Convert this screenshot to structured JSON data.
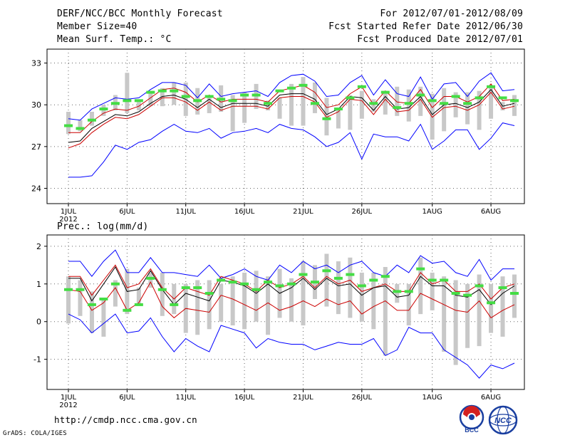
{
  "header": {
    "title": "DERF/NCC/BCC Monthly Forecast",
    "member_size": "Member Size=40",
    "variable": "Mean Surf. Temp.: °C",
    "forecast_range": "For 2012/07/01-2012/08/09",
    "started_refer": "Fcst Started Refer Date 2012/06/30",
    "produced": "Fcst Produced Date 2012/07/01"
  },
  "footer": {
    "url": "http://cmdp.ncc.cma.gov.cn",
    "grads": "GrADS: COLA/IGES",
    "logo_bcc": "BCC",
    "logo_ncc": "NCC"
  },
  "colors": {
    "max_line": "#0000ff",
    "min_line": "#0000ff",
    "ensemble_mean": "#000000",
    "upper_band": "#cc0000",
    "lower_band": "#cc0000",
    "spread_bar": "#c8c8c8",
    "observed_marker": "#44dd44"
  },
  "chart_data": [
    {
      "type": "line",
      "title": "Mean Surf. Temp.: °C",
      "ylim": [
        22.9,
        34
      ],
      "yticks": [
        24,
        27,
        30,
        33
      ],
      "x_start_day": 1,
      "x_tick_labels": [
        "1JUL",
        "6JUL",
        "11JUL",
        "16JUL",
        "21JUL",
        "26JUL",
        "1AUG",
        "6AUG"
      ],
      "x_tick_days": [
        1,
        6,
        11,
        16,
        21,
        26,
        32,
        37
      ],
      "year_label": "2012",
      "days": 39,
      "series": [
        {
          "name": "max",
          "values": [
            29.0,
            28.9,
            29.7,
            30.1,
            30.5,
            30.4,
            30.5,
            31.1,
            31.6,
            31.6,
            31.4,
            30.5,
            31.5,
            30.6,
            30.8,
            30.9,
            31.0,
            30.6,
            31.6,
            32.1,
            32.2,
            31.7,
            30.6,
            30.7,
            31.6,
            32.1,
            30.7,
            31.8,
            30.8,
            30.6,
            32.0,
            30.4,
            31.5,
            31.6,
            30.6,
            31.7,
            32.3,
            31.0,
            31.1
          ]
        },
        {
          "name": "upper",
          "values": [
            28.0,
            28.0,
            28.8,
            29.4,
            29.7,
            29.6,
            29.9,
            30.5,
            31.1,
            31.2,
            30.9,
            30.2,
            30.7,
            30.2,
            30.4,
            30.4,
            30.4,
            30.2,
            31.0,
            31.2,
            31.4,
            30.9,
            29.8,
            30.0,
            30.8,
            31.3,
            30.0,
            31.0,
            30.2,
            30.1,
            31.1,
            29.8,
            30.6,
            30.6,
            30.2,
            30.6,
            31.5,
            30.3,
            30.4
          ]
        },
        {
          "name": "mean",
          "values": [
            27.3,
            27.4,
            28.3,
            28.8,
            29.3,
            29.2,
            29.5,
            30.1,
            30.6,
            30.7,
            30.4,
            29.8,
            30.4,
            29.8,
            30.1,
            30.1,
            30.1,
            29.9,
            30.7,
            30.8,
            30.8,
            30.4,
            29.3,
            29.7,
            30.6,
            30.5,
            29.6,
            30.6,
            29.7,
            29.8,
            30.6,
            29.3,
            30.0,
            30.1,
            29.8,
            30.2,
            31.1,
            29.9,
            30.1
          ]
        },
        {
          "name": "lower",
          "values": [
            26.9,
            27.2,
            28.0,
            28.6,
            29.1,
            29.0,
            29.3,
            29.9,
            30.5,
            30.5,
            30.2,
            29.6,
            30.2,
            29.6,
            29.9,
            29.9,
            29.9,
            29.7,
            30.5,
            30.6,
            30.6,
            30.2,
            29.1,
            29.5,
            30.4,
            30.3,
            29.3,
            30.4,
            29.5,
            29.6,
            30.4,
            29.1,
            29.8,
            29.9,
            29.6,
            30.0,
            30.9,
            29.7,
            29.9
          ]
        },
        {
          "name": "min",
          "values": [
            24.8,
            24.8,
            24.9,
            25.9,
            27.1,
            26.8,
            27.3,
            27.5,
            28.1,
            28.6,
            28.1,
            28.0,
            28.3,
            27.6,
            28.0,
            28.1,
            28.3,
            28.0,
            28.6,
            28.3,
            28.2,
            27.7,
            27.0,
            27.3,
            28.0,
            26.1,
            27.9,
            27.7,
            27.7,
            27.4,
            28.6,
            26.8,
            27.4,
            28.2,
            28.2,
            26.8,
            27.6,
            28.7,
            28.5
          ]
        },
        {
          "name": "spread_high",
          "values": [
            29.5,
            28.9,
            29.5,
            30.0,
            30.7,
            32.3,
            30.2,
            31.0,
            31.2,
            31.6,
            31.6,
            31.2,
            30.7,
            31.4,
            30.7,
            30.9,
            31.5,
            30.3,
            30.5,
            31.5,
            32.0,
            31.6,
            30.5,
            29.6,
            30.7,
            31.0,
            30.4,
            31.0,
            31.3,
            31.1,
            31.3,
            30.8,
            31.2,
            30.9,
            30.9,
            31.0,
            31.3,
            30.2,
            30.7
          ]
        },
        {
          "name": "spread_low",
          "values": [
            27.9,
            28.1,
            28.5,
            29.2,
            29.6,
            29.4,
            29.6,
            29.9,
            29.9,
            30.0,
            29.2,
            29.3,
            29.4,
            29.5,
            28.1,
            28.7,
            29.7,
            29.6,
            29.0,
            28.5,
            28.5,
            29.4,
            27.8,
            28.3,
            28.2,
            29.0,
            29.5,
            29.3,
            29.2,
            28.8,
            29.2,
            27.5,
            28.1,
            29.1,
            28.6,
            28.2,
            29.0,
            29.6,
            29.2
          ]
        },
        {
          "name": "observed",
          "values": [
            28.5,
            28.3,
            28.9,
            29.7,
            30.1,
            30.3,
            30.3,
            30.9,
            31.0,
            31.0,
            30.6,
            30.3,
            30.6,
            30.4,
            30.3,
            30.7,
            30.7,
            30.1,
            31.0,
            31.2,
            31.4,
            30.1,
            29.0,
            29.7,
            30.5,
            31.3,
            30.1,
            30.9,
            29.8,
            30.1,
            30.7,
            30.3,
            30.1,
            30.6,
            30.1,
            30.5,
            31.3,
            30.5,
            30.3
          ]
        }
      ]
    },
    {
      "type": "line",
      "title": "Prec.: log(mm/d)",
      "ylim": [
        -1.8,
        2.3
      ],
      "yticks": [
        -1,
        0,
        1,
        2
      ],
      "x_start_day": 1,
      "x_tick_labels": [
        "1JUL",
        "6JUL",
        "11JUL",
        "16JUL",
        "21JUL",
        "26JUL",
        "1AUG",
        "6AUG"
      ],
      "x_tick_days": [
        1,
        6,
        11,
        16,
        21,
        26,
        32,
        37
      ],
      "year_label": "2012",
      "days": 39,
      "series": [
        {
          "name": "max",
          "values": [
            1.6,
            1.6,
            1.2,
            1.6,
            1.9,
            1.3,
            1.3,
            1.7,
            1.3,
            1.3,
            1.25,
            1.2,
            1.5,
            1.15,
            1.25,
            1.4,
            1.2,
            1.1,
            1.5,
            1.3,
            1.6,
            1.4,
            1.5,
            1.3,
            1.5,
            1.6,
            1.3,
            1.2,
            1.5,
            1.3,
            1.75,
            1.55,
            1.6,
            1.3,
            1.2,
            1.65,
            1.1,
            1.4,
            1.4
          ]
        },
        {
          "name": "upper",
          "values": [
            1.2,
            1.2,
            0.7,
            1.1,
            1.5,
            0.9,
            1.0,
            1.4,
            0.9,
            0.6,
            0.9,
            0.8,
            0.7,
            1.2,
            1.1,
            1.0,
            0.8,
            1.1,
            0.9,
            1.0,
            1.2,
            0.9,
            1.2,
            1.0,
            1.1,
            0.8,
            0.9,
            1.0,
            0.8,
            0.8,
            1.3,
            1.0,
            1.1,
            0.8,
            0.8,
            1.0,
            0.6,
            0.9,
            1.0
          ]
        },
        {
          "name": "mean",
          "values": [
            1.15,
            1.15,
            0.55,
            1.0,
            1.45,
            0.8,
            0.85,
            1.35,
            0.85,
            0.45,
            0.75,
            0.65,
            0.55,
            1.1,
            1.05,
            0.95,
            0.75,
            1.0,
            0.75,
            0.9,
            1.15,
            0.85,
            1.15,
            0.95,
            1.0,
            0.7,
            0.9,
            0.95,
            0.65,
            0.7,
            1.2,
            0.95,
            0.95,
            0.7,
            0.65,
            0.85,
            0.45,
            0.75,
            0.95
          ]
        },
        {
          "name": "lower",
          "values": [
            0.85,
            0.8,
            0.3,
            0.5,
            0.9,
            0.3,
            0.5,
            1.05,
            0.4,
            0.1,
            0.35,
            0.3,
            0.25,
            0.7,
            0.6,
            0.45,
            0.3,
            0.5,
            0.3,
            0.4,
            0.55,
            0.4,
            0.6,
            0.45,
            0.55,
            0.2,
            0.4,
            0.55,
            0.3,
            0.3,
            0.75,
            0.6,
            0.45,
            0.3,
            0.25,
            0.55,
            0.1,
            0.3,
            0.45
          ]
        },
        {
          "name": "min",
          "values": [
            0.2,
            0.05,
            -0.3,
            -0.05,
            0.2,
            -0.3,
            -0.25,
            0.1,
            -0.4,
            -0.8,
            -0.45,
            -0.65,
            -0.8,
            -0.1,
            -0.2,
            -0.3,
            -0.7,
            -0.45,
            -0.55,
            -0.6,
            -0.6,
            -0.75,
            -0.65,
            -0.55,
            -0.6,
            -0.6,
            -0.45,
            -0.9,
            -0.75,
            -0.15,
            -0.3,
            -0.3,
            -0.75,
            -0.95,
            -1.15,
            -1.5,
            -1.15,
            -1.25,
            -1.1
          ]
        },
        {
          "name": "spread_high",
          "values": [
            1.2,
            1.1,
            0.8,
            0.6,
            1.1,
            1.4,
            0.9,
            1.3,
            1.3,
            1.0,
            1.0,
            1.1,
            1.1,
            1.0,
            1.2,
            1.3,
            1.35,
            1.2,
            1.4,
            1.15,
            1.6,
            1.5,
            1.8,
            1.6,
            1.7,
            1.3,
            1.3,
            1.45,
            1.0,
            1.0,
            1.7,
            1.3,
            1.2,
            1.1,
            1.0,
            1.25,
            1.0,
            1.2,
            1.25
          ]
        },
        {
          "name": "spread_low",
          "values": [
            -0.05,
            0.15,
            -0.3,
            -0.4,
            0.4,
            0.2,
            0.45,
            0.9,
            0.15,
            0.2,
            -0.3,
            -0.35,
            -0.2,
            0.0,
            -0.1,
            -0.2,
            0.0,
            -0.35,
            0.1,
            0.0,
            -0.1,
            0.6,
            0.4,
            0.2,
            0.1,
            0.0,
            -0.2,
            -0.9,
            0.5,
            -0.1,
            0.2,
            0.3,
            -0.8,
            -1.15,
            -0.7,
            -0.65,
            -0.3,
            -0.4,
            0.1
          ]
        },
        {
          "name": "observed",
          "values": [
            0.85,
            0.85,
            0.45,
            0.6,
            1.0,
            0.3,
            0.45,
            1.15,
            0.85,
            0.45,
            0.9,
            0.9,
            0.75,
            1.1,
            1.05,
            1.0,
            0.85,
            1.05,
            0.95,
            1.0,
            1.25,
            1.05,
            1.35,
            1.15,
            1.25,
            0.95,
            1.1,
            1.2,
            0.8,
            0.8,
            1.4,
            1.1,
            1.1,
            0.75,
            0.7,
            0.95,
            0.5,
            0.9,
            0.75
          ]
        }
      ]
    }
  ]
}
